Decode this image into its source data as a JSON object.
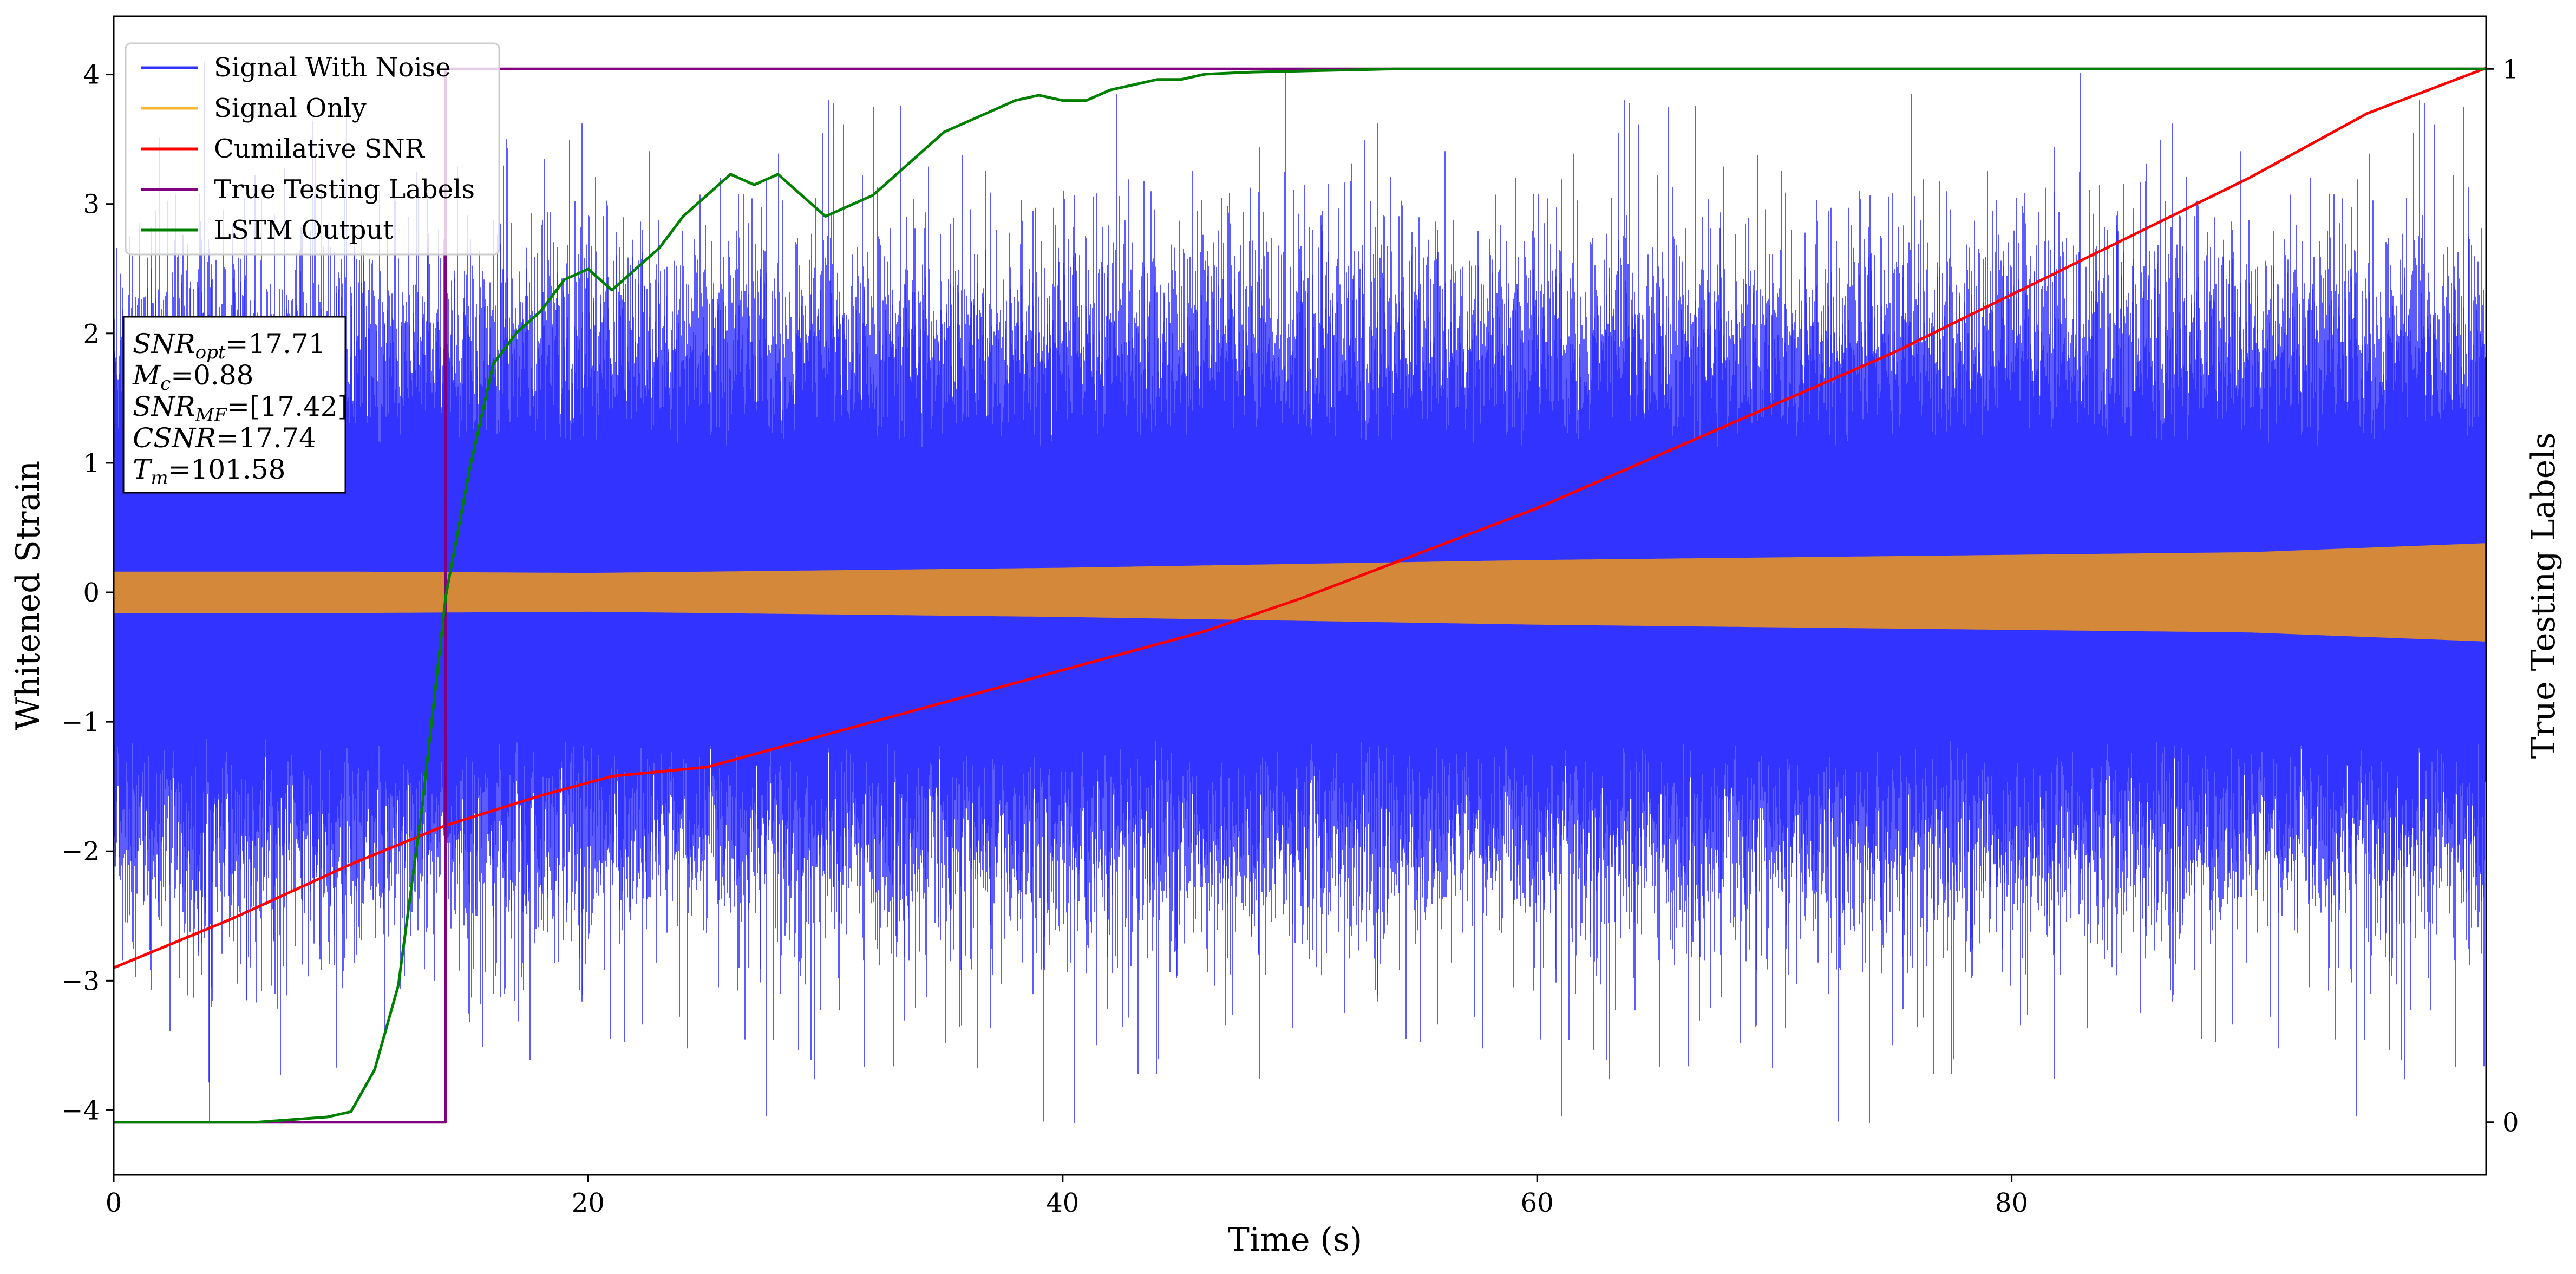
{
  "chart_data": {
    "type": "line",
    "title": "",
    "xlabel": "Time (s)",
    "ylabel": "Whitened Strain",
    "y2label": "True Testing Labels",
    "xlim": [
      0,
      100
    ],
    "ylim": [
      -4.5,
      4.45
    ],
    "y2lim": [
      -0.05,
      1.05
    ],
    "x_ticks": [
      0,
      20,
      40,
      60,
      80
    ],
    "y_ticks": [
      -4,
      -3,
      -2,
      -1,
      0,
      1,
      2,
      3,
      4
    ],
    "y2_ticks": [
      0,
      1
    ],
    "grid": false,
    "legend_position": "top-left",
    "legend": [
      {
        "name": "Signal With Noise",
        "color": "#3333ff"
      },
      {
        "name": "Signal Only",
        "color": "#ffb733"
      },
      {
        "name": "Cumilative SNR",
        "color": "#ff0000"
      },
      {
        "name": "True Testing Labels",
        "color": "#800080"
      },
      {
        "name": "LSTM Output",
        "color": "#008000"
      }
    ],
    "info_box": [
      {
        "label": "SNR",
        "sub": "opt",
        "value": "=17.71"
      },
      {
        "label": "M",
        "sub": "c",
        "value": "=0.88"
      },
      {
        "label": "SNR",
        "sub": "MF",
        "value": "=[17.42]"
      },
      {
        "label": "CSNR",
        "sub": "",
        "value": "=17.74"
      },
      {
        "label": "T",
        "sub": "m",
        "value": "=101.58"
      }
    ],
    "series": [
      {
        "name": "Signal With Noise",
        "axis": "left",
        "color": "#3333ff",
        "style": "dense-noise",
        "x_range": [
          0,
          100
        ],
        "typical_amplitude": 2.0,
        "max_abs": 4.1
      },
      {
        "name": "Signal Only",
        "axis": "left",
        "color": "#d4883a",
        "style": "band",
        "x": [
          0,
          10,
          20,
          30,
          40,
          50,
          60,
          70,
          80,
          90,
          100
        ],
        "amplitude": [
          0.16,
          0.16,
          0.15,
          0.17,
          0.19,
          0.22,
          0.25,
          0.27,
          0.29,
          0.31,
          0.38
        ]
      },
      {
        "name": "Cumilative SNR",
        "axis": "left",
        "color": "#ff0000",
        "x": [
          0,
          5,
          10,
          14,
          18,
          21,
          25,
          30,
          35,
          40,
          46,
          50,
          55,
          60,
          65,
          70,
          75,
          80,
          85,
          90,
          95,
          100
        ],
        "y": [
          -2.9,
          -2.52,
          -2.1,
          -1.8,
          -1.57,
          -1.42,
          -1.35,
          -1.1,
          -0.85,
          -0.6,
          -0.3,
          -0.05,
          0.3,
          0.65,
          1.05,
          1.45,
          1.85,
          2.3,
          2.75,
          3.2,
          3.7,
          4.05
        ]
      },
      {
        "name": "True Testing Labels",
        "axis": "right",
        "color": "#800080",
        "x": [
          0,
          14,
          14,
          100
        ],
        "y": [
          0,
          0,
          1,
          1
        ]
      },
      {
        "name": "LSTM Output",
        "axis": "right",
        "color": "#008000",
        "x": [
          0,
          6,
          9,
          10,
          11,
          12,
          13,
          14,
          15,
          16,
          17,
          18,
          19,
          20,
          21,
          22,
          23,
          24,
          25,
          26,
          27,
          28,
          29,
          30,
          31,
          32,
          33,
          34,
          35,
          36,
          37,
          38,
          39,
          40,
          41,
          42,
          43,
          44,
          45,
          46,
          48,
          50,
          54,
          60,
          70,
          100
        ],
        "y": [
          0,
          0,
          0.005,
          0.01,
          0.05,
          0.13,
          0.3,
          0.5,
          0.62,
          0.72,
          0.75,
          0.77,
          0.8,
          0.81,
          0.79,
          0.81,
          0.83,
          0.86,
          0.88,
          0.9,
          0.89,
          0.9,
          0.88,
          0.86,
          0.87,
          0.88,
          0.9,
          0.92,
          0.94,
          0.95,
          0.96,
          0.97,
          0.975,
          0.97,
          0.97,
          0.98,
          0.985,
          0.99,
          0.99,
          0.995,
          0.997,
          0.998,
          1.0,
          1.0,
          1.0,
          1.0
        ]
      }
    ]
  }
}
